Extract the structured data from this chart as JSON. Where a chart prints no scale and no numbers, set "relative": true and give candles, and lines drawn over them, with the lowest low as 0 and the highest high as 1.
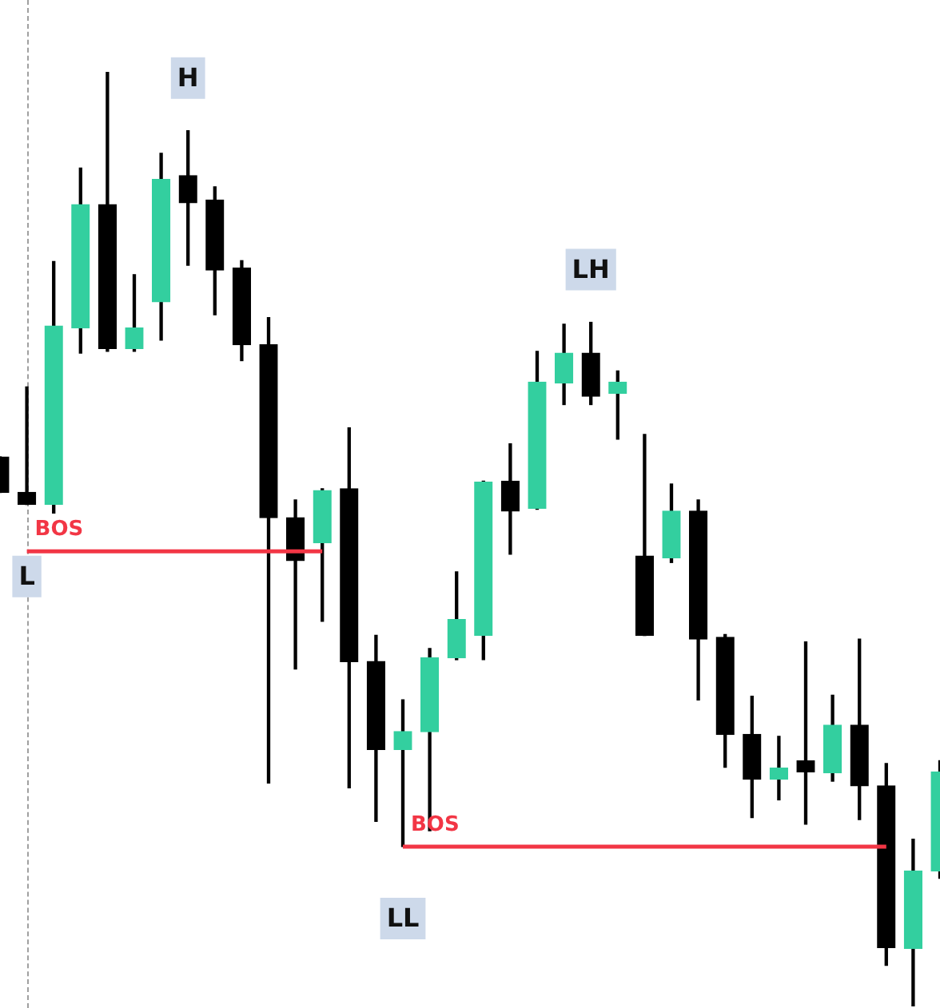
{
  "chart_data": {
    "type": "candlestick",
    "relative": true,
    "categories": [
      null,
      null,
      null,
      null,
      null,
      null,
      null,
      null,
      null,
      null,
      null,
      null,
      null,
      null,
      null,
      null,
      null,
      null,
      null,
      null,
      null,
      null,
      null,
      null,
      null,
      null,
      null,
      null,
      null,
      null,
      null,
      null,
      null,
      null,
      null,
      null
    ],
    "ohlc": [
      [
        0.588,
        0.588,
        0.55,
        0.55
      ],
      [
        0.55,
        0.663,
        0.537,
        0.537
      ],
      [
        0.537,
        0.797,
        0.528,
        0.728
      ],
      [
        0.726,
        0.897,
        0.699,
        0.858
      ],
      [
        0.858,
        1,
        0.701,
        0.704
      ],
      [
        0.704,
        0.783,
        0.701,
        0.726
      ],
      [
        0.754,
        0.913,
        0.713,
        0.885
      ],
      [
        0.889,
        0.937,
        0.793,
        0.86
      ],
      [
        0.863,
        0.877,
        0.74,
        0.788
      ],
      [
        0.79,
        0.798,
        0.691,
        0.708
      ],
      [
        0.708,
        0.737,
        0.239,
        0.523
      ],
      [
        0.523,
        0.542,
        0.361,
        0.477
      ],
      [
        0.496,
        0.554,
        0.412,
        0.552
      ],
      [
        0.554,
        0.619,
        0.234,
        0.369
      ],
      [
        0.369,
        0.397,
        0.198,
        0.275
      ],
      [
        0.275,
        0.328,
        0.171,
        0.294
      ],
      [
        0.294,
        0.383,
        0.188,
        0.373
      ],
      [
        0.373,
        0.465,
        0.371,
        0.414
      ],
      [
        0.397,
        0.562,
        0.371,
        0.561
      ],
      [
        0.562,
        0.602,
        0.484,
        0.53
      ],
      [
        0.533,
        0.701,
        0.532,
        0.668
      ],
      [
        0.667,
        0.73,
        0.644,
        0.699
      ],
      [
        0.699,
        0.732,
        0.644,
        0.653
      ],
      [
        0.656,
        0.68,
        0.607,
        0.668
      ],
      [
        0.482,
        0.612,
        0.397,
        0.397
      ],
      [
        0.48,
        0.559,
        0.475,
        0.53
      ],
      [
        0.53,
        0.542,
        0.328,
        0.393
      ],
      [
        0.395,
        0.398,
        0.256,
        0.291
      ],
      [
        0.291,
        0.332,
        0.202,
        0.243
      ],
      [
        0.243,
        0.289,
        0.221,
        0.255
      ],
      [
        0.263,
        0.39,
        0.195,
        0.251
      ],
      [
        0.25,
        0.333,
        0.241,
        0.301
      ],
      [
        0.301,
        0.393,
        0.2,
        0.236
      ],
      [
        0.236,
        0.26,
        0.044,
        0.063
      ],
      [
        0.062,
        0.179,
        0,
        0.145
      ],
      [
        0.145,
        0.263,
        0.137,
        0.251
      ]
    ],
    "colors": [
      "#000000",
      "#000000",
      "#33cf9f",
      "#33cf9f",
      "#000000",
      "#33cf9f",
      "#33cf9f",
      "#000000",
      "#000000",
      "#000000",
      "#000000",
      "#000000",
      "#33cf9f",
      "#000000",
      "#000000",
      "#33cf9f",
      "#33cf9f",
      "#33cf9f",
      "#33cf9f",
      "#000000",
      "#33cf9f",
      "#33cf9f",
      "#000000",
      "#33cf9f",
      "#000000",
      "#33cf9f",
      "#000000",
      "#000000",
      "#000000",
      "#33cf9f",
      "#000000",
      "#33cf9f",
      "#000000",
      "#000000",
      "#33cf9f",
      "#33cf9f"
    ],
    "series": [
      {
        "name": "BOS",
        "type": "line",
        "color": "#f23645",
        "values": [
          null,
          0.487,
          0.487,
          0.487,
          0.487,
          0.487,
          0.487,
          0.487,
          0.487,
          0.487,
          0.487,
          0.487,
          0.487,
          null,
          null,
          null,
          null,
          null,
          null,
          null,
          null,
          null,
          null,
          null,
          null,
          null,
          null,
          null,
          null,
          null,
          null,
          null,
          null,
          null,
          null,
          null
        ]
      },
      {
        "name": "BOS",
        "type": "line",
        "color": "#f23645",
        "values": [
          null,
          null,
          null,
          null,
          null,
          null,
          null,
          null,
          null,
          null,
          null,
          null,
          null,
          null,
          null,
          0.171,
          0.171,
          0.171,
          0.171,
          0.171,
          0.171,
          0.171,
          0.171,
          0.171,
          0.171,
          0.171,
          0.171,
          0.171,
          0.171,
          0.171,
          0.171,
          0.171,
          0.171,
          0.171,
          null,
          null
        ]
      }
    ],
    "annotations": [
      {
        "text": "H",
        "y": 0.937
      },
      {
        "text": "L",
        "y": 0.537
      },
      {
        "text": "LH",
        "y": 0.732
      },
      {
        "text": "LL",
        "y": 0.171
      }
    ]
  }
}
